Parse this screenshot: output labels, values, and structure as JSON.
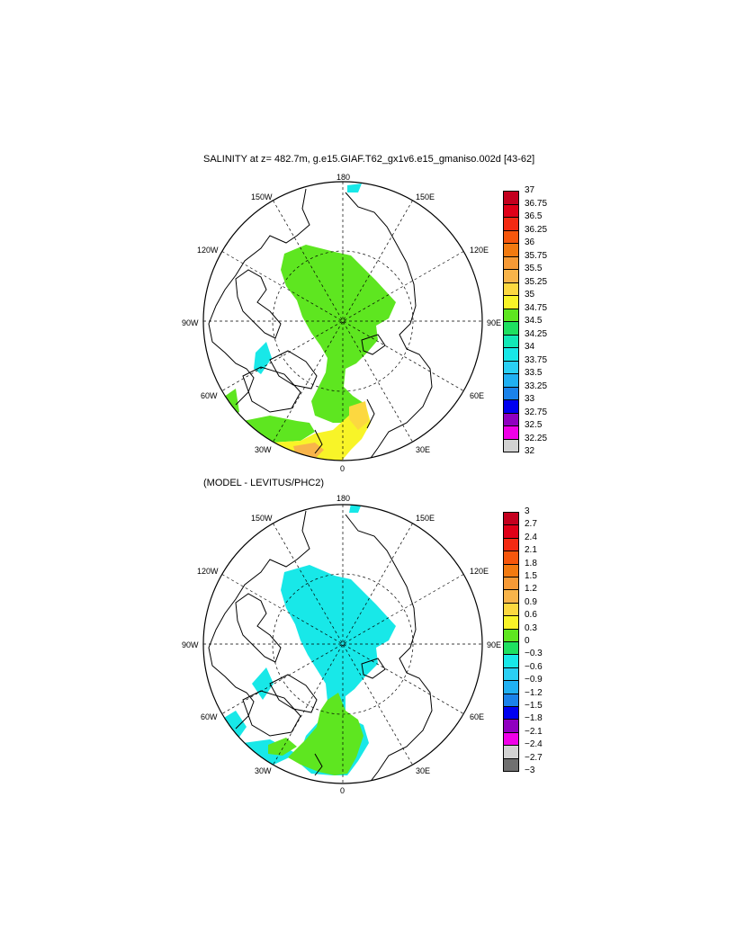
{
  "title_top": "SALINITY at z= 482.7m, g.e15.GIAF.T62_gx1v6.e15_gmaniso.002d [43-62]",
  "title_bottom": "(MODEL - LEVITUS/PHC2)",
  "map_labels": {
    "deg180": "180",
    "deg150W": "150W",
    "deg150E": "150E",
    "deg120W": "120W",
    "deg120E": "120E",
    "deg90W": "90W",
    "deg90E": "90E",
    "deg60W": "60W",
    "deg60E": "60E",
    "deg30W": "30W",
    "deg30E": "30E",
    "deg0": "0"
  },
  "colorbar_top": {
    "labels": [
      "37",
      "36.75",
      "36.5",
      "36.25",
      "36",
      "35.75",
      "35.5",
      "35.25",
      "35",
      "34.75",
      "34.5",
      "34.25",
      "34",
      "33.75",
      "33.5",
      "33.25",
      "33",
      "32.75",
      "32.5",
      "32.25",
      "32"
    ],
    "colors": [
      "#c4001e",
      "#e00018",
      "#f42a12",
      "#f6560c",
      "#f27a10",
      "#f69a36",
      "#f8b44a",
      "#fcd840",
      "#f8f428",
      "#5ee620",
      "#1ee060",
      "#12e8b6",
      "#18e8e8",
      "#2ad0f4",
      "#20b0f2",
      "#1a82ea",
      "#0000f0",
      "#9000c0",
      "#f000e8",
      "#d2d2d2",
      "#707070"
    ]
  },
  "colorbar_bottom": {
    "labels": [
      "3",
      "2.7",
      "2.4",
      "2.1",
      "1.8",
      "1.5",
      "1.2",
      "0.9",
      "0.6",
      "0.3",
      "0",
      "−0.3",
      "−0.6",
      "−0.9",
      "−1.2",
      "−1.5",
      "−1.8",
      "−2.1",
      "−2.4",
      "−2.7",
      "−3"
    ],
    "colors": [
      "#c4001e",
      "#e00018",
      "#f42a12",
      "#f6560c",
      "#f27a10",
      "#f69a36",
      "#f8b44a",
      "#fcd840",
      "#f8f428",
      "#5ee620",
      "#1ee060",
      "#18e8e8",
      "#2ad0f4",
      "#20b0f2",
      "#1a82ea",
      "#0000f0",
      "#9000c0",
      "#f000e8",
      "#d2d2d2",
      "#707070",
      "#707070"
    ]
  }
}
